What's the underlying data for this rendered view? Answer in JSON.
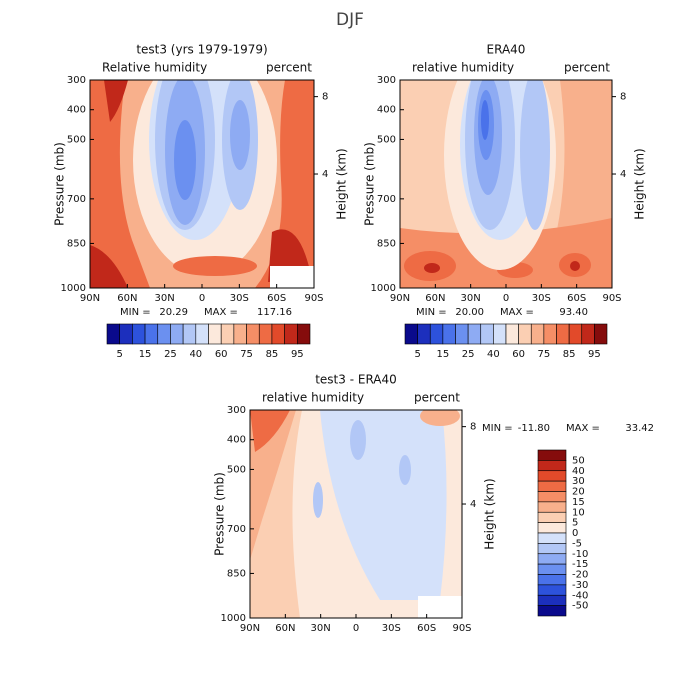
{
  "title": "DJF",
  "chart_data": [
    {
      "type": "contour",
      "title": "test3 (yrs 1979-1979)",
      "left_label": "Relative humidity",
      "right_label": "percent",
      "ylabel": "Pressure (mb)",
      "y2label": "Height (km)",
      "xlim": [
        90,
        -90
      ],
      "xticks": [
        {
          "value": 90,
          "label": "90N"
        },
        {
          "value": 60,
          "label": "60N"
        },
        {
          "value": 30,
          "label": "30N"
        },
        0,
        {
          "value": -30,
          "label": "30S"
        },
        {
          "value": -60,
          "label": "60S"
        },
        {
          "value": -90,
          "label": "90S"
        }
      ],
      "ylim": [
        1000,
        300
      ],
      "yticks": [
        300,
        400,
        500,
        700,
        850,
        1000
      ],
      "y2ticks": [
        4,
        8
      ],
      "stats": [
        {
          "name": "MIN =",
          "value": 20.29,
          "label": "20.29"
        },
        {
          "name": "MAX =",
          "value": 117.16,
          "label": "117.16"
        }
      ],
      "colorbar": {
        "orientation": "horizontal",
        "levels": [
          5,
          15,
          25,
          40,
          60,
          75,
          85,
          95
        ],
        "colors": [
          "#0a0a8c",
          "#1c2fbd",
          "#2d52dc",
          "#4a72ea",
          "#6b90f0",
          "#8eabf3",
          "#b2c7f6",
          "#d4e1fa",
          "#fce9dc",
          "#fbcfb3",
          "#f8b08c",
          "#f58e66",
          "#ee6b44",
          "#e24a2a",
          "#c1281a",
          "#850c0c"
        ]
      }
    },
    {
      "type": "contour",
      "title": "ERA40",
      "left_label": "relative humidity",
      "right_label": "percent",
      "ylabel": "Pressure (mb)",
      "y2label": "Height (km)",
      "xlim": [
        90,
        -90
      ],
      "xticks": [
        {
          "value": 90,
          "label": "90N"
        },
        {
          "value": 60,
          "label": "60N"
        },
        {
          "value": 30,
          "label": "30N"
        },
        0,
        {
          "value": -30,
          "label": "30S"
        },
        {
          "value": -60,
          "label": "60S"
        },
        {
          "value": -90,
          "label": "90S"
        }
      ],
      "ylim": [
        1000,
        300
      ],
      "yticks": [
        300,
        400,
        500,
        700,
        850,
        1000
      ],
      "y2ticks": [
        4,
        8
      ],
      "stats": [
        {
          "name": "MIN =",
          "value": 20,
          "label": "20.00"
        },
        {
          "name": "MAX =",
          "value": 93.4,
          "label": "93.40"
        }
      ],
      "colorbar": {
        "orientation": "horizontal",
        "levels": [
          5,
          15,
          25,
          40,
          60,
          75,
          85,
          95
        ],
        "colors": [
          "#0a0a8c",
          "#1c2fbd",
          "#2d52dc",
          "#4a72ea",
          "#6b90f0",
          "#8eabf3",
          "#b2c7f6",
          "#d4e1fa",
          "#fce9dc",
          "#fbcfb3",
          "#f8b08c",
          "#f58e66",
          "#ee6b44",
          "#e24a2a",
          "#c1281a",
          "#850c0c"
        ]
      }
    },
    {
      "type": "contour",
      "title": "test3 - ERA40",
      "left_label": "relative humidity",
      "right_label": "percent",
      "ylabel": "Pressure (mb)",
      "y2label": "Height (km)",
      "xlim": [
        90,
        -90
      ],
      "xticks": [
        {
          "value": 90,
          "label": "90N"
        },
        {
          "value": 60,
          "label": "60N"
        },
        {
          "value": 30,
          "label": "30N"
        },
        0,
        {
          "value": -30,
          "label": "30S"
        },
        {
          "value": -60,
          "label": "60S"
        },
        {
          "value": -90,
          "label": "90S"
        }
      ],
      "ylim": [
        1000,
        300
      ],
      "yticks": [
        300,
        400,
        500,
        700,
        850,
        1000
      ],
      "y2ticks": [
        4,
        8
      ],
      "stats": [
        {
          "name": "MIN =",
          "value": -11.8,
          "label": "-11.80"
        },
        {
          "name": "MAX =",
          "value": 33.42,
          "label": "33.42"
        }
      ],
      "colorbar": {
        "orientation": "vertical",
        "levels": [
          50,
          40,
          30,
          20,
          15,
          10,
          5,
          0,
          -5,
          -10,
          -15,
          -20,
          -30,
          -40,
          -50
        ],
        "colors": [
          "#850c0c",
          "#c1281a",
          "#e24a2a",
          "#ee6b44",
          "#f58e66",
          "#f8b08c",
          "#fbcfb3",
          "#fce9dc",
          "#d4e1fa",
          "#b2c7f6",
          "#8eabf3",
          "#6b90f0",
          "#4a72ea",
          "#2d52dc",
          "#1c2fbd",
          "#0a0a8c"
        ]
      }
    }
  ]
}
